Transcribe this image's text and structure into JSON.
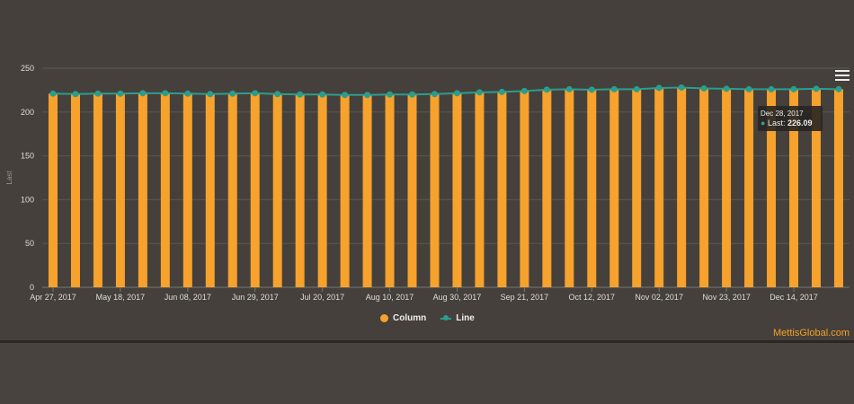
{
  "chart_data": {
    "type": "bar",
    "ylabel": "Last",
    "ylim": [
      0,
      250
    ],
    "yticks": [
      "0",
      "50",
      "100",
      "150",
      "200",
      "250"
    ],
    "xtick_labels": [
      "Apr 27, 2017",
      "May 18, 2017",
      "Jun 08, 2017",
      "Jun 29, 2017",
      "Jul 20, 2017",
      "Aug 10, 2017",
      "Aug 30, 2017",
      "Sep 21, 2017",
      "Oct 12, 2017",
      "Nov 02, 2017",
      "Nov 23, 2017",
      "Dec 14, 2017"
    ],
    "series": [
      {
        "name": "Column",
        "type": "column",
        "color": "#f6a22c",
        "values": [
          221,
          220.5,
          221,
          221,
          221.5,
          221.5,
          221,
          220.5,
          221,
          221.5,
          220.5,
          220,
          220,
          219.5,
          219.5,
          220,
          220,
          220.5,
          221.5,
          222.5,
          223,
          224,
          225.5,
          226,
          225.5,
          226,
          226,
          227.5,
          228,
          227,
          226.5,
          226,
          226,
          226,
          226.5,
          226.09
        ]
      },
      {
        "name": "Line",
        "type": "line",
        "color": "#2a9d8f",
        "values": [
          221,
          220.5,
          221,
          221,
          221.5,
          221.5,
          221,
          220.5,
          221,
          221.5,
          220.5,
          220,
          220,
          219.5,
          219.5,
          220,
          220,
          220.5,
          221.5,
          222.5,
          223,
          224,
          225.5,
          226,
          225.5,
          226,
          226,
          227.5,
          228,
          227,
          226.5,
          226,
          226,
          226,
          226.5,
          226.09
        ]
      }
    ],
    "legend": "bottom-center",
    "grid": true
  },
  "tooltip": {
    "date": "Dec 28, 2017",
    "label": "Last:",
    "value": "226.09"
  },
  "legend": {
    "column": "Column",
    "line": "Line"
  },
  "credit": "MettisGlobal.com"
}
